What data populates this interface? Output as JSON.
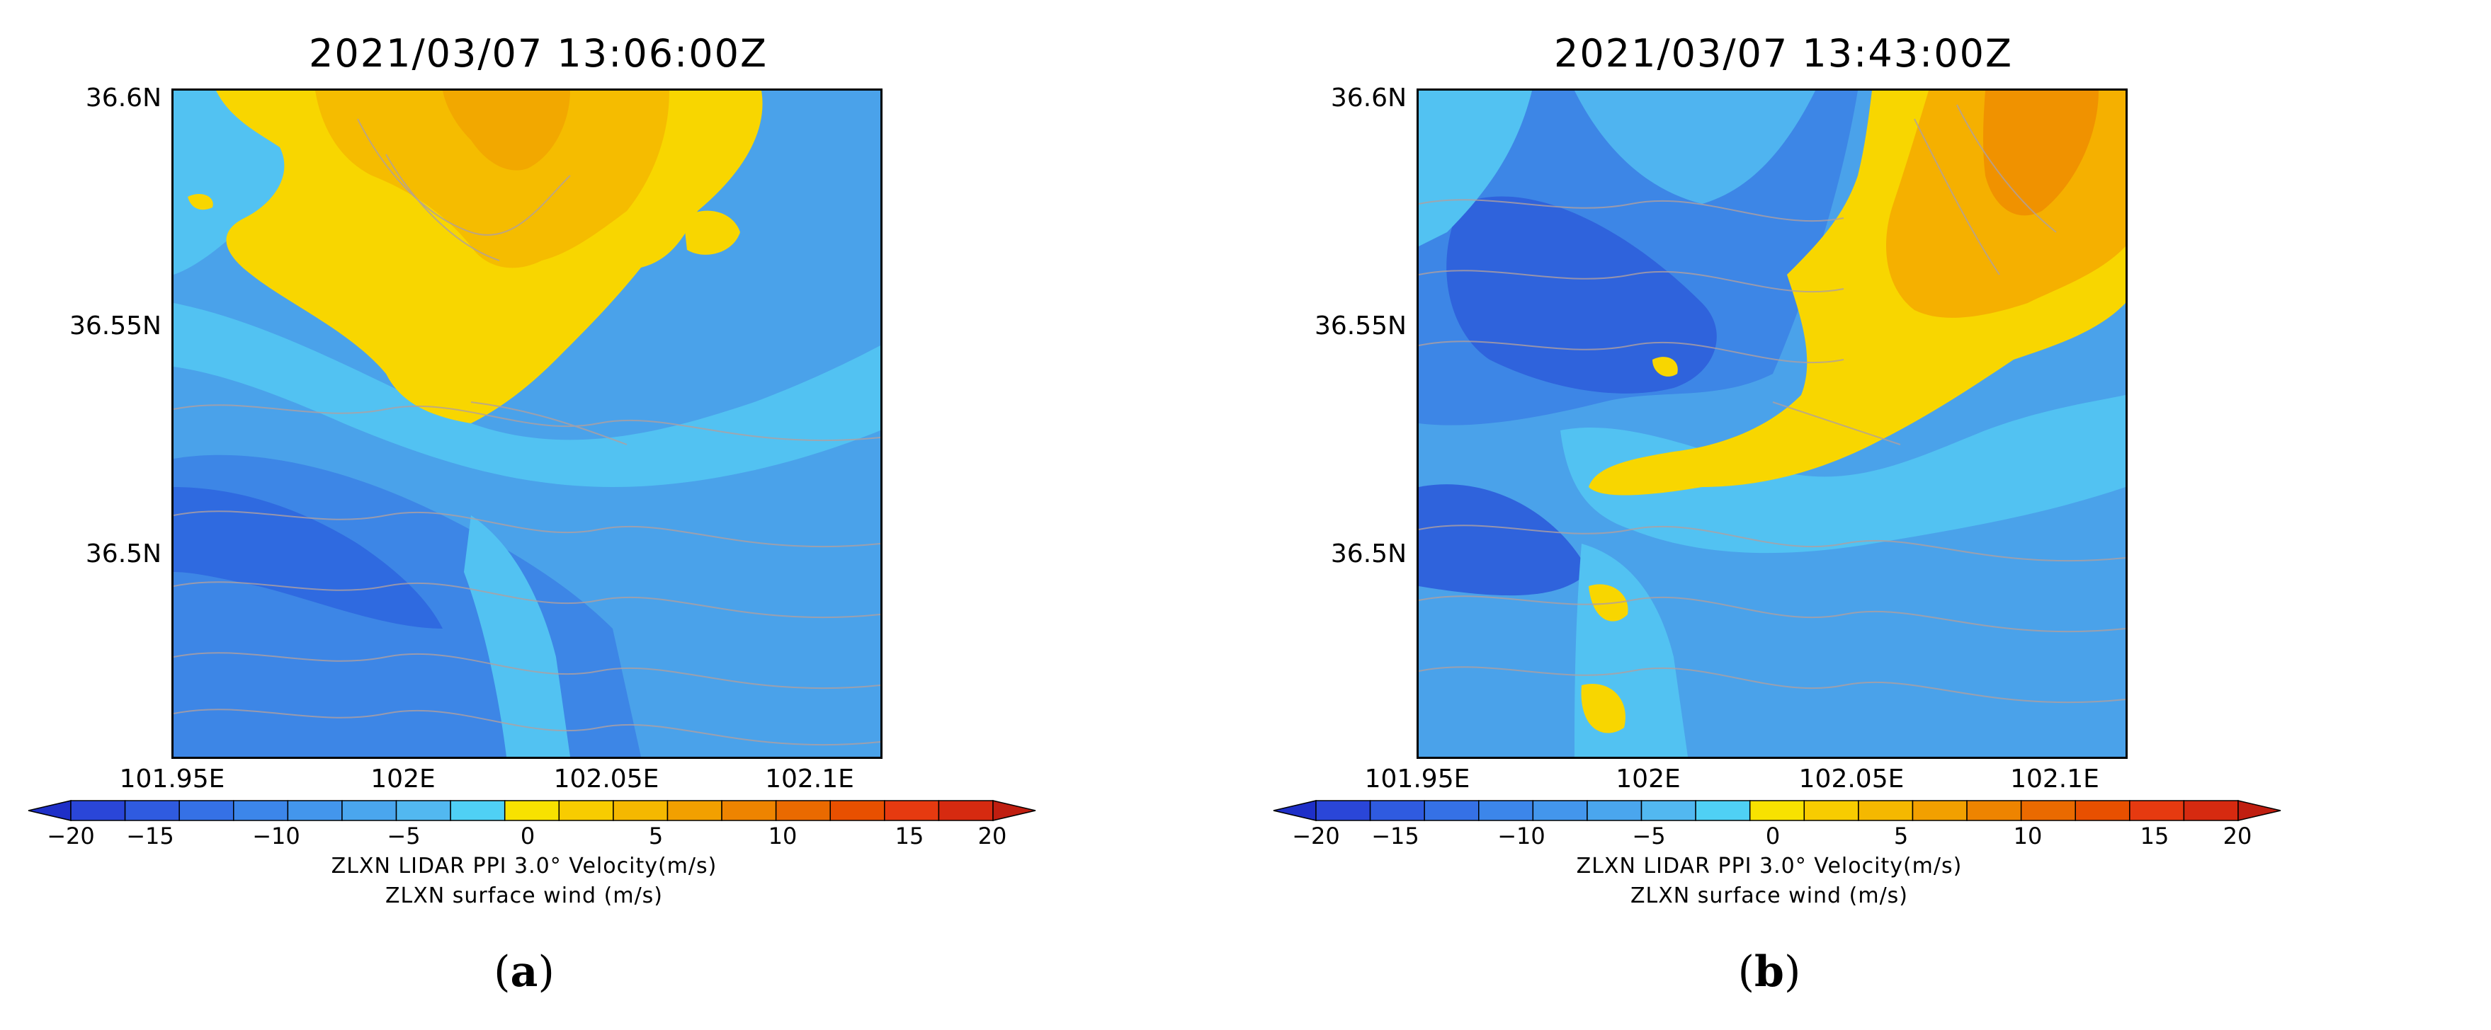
{
  "colorbar": {
    "ticks": [
      "−20",
      "−15",
      "−10",
      "−5",
      "0",
      "5",
      "10",
      "15",
      "20"
    ],
    "tick_values": [
      -20,
      -15,
      -10,
      -5,
      0,
      5,
      10,
      15,
      20
    ],
    "colors": [
      "#1e2fc8",
      "#2a46d8",
      "#2f5be0",
      "#3571e6",
      "#3c86ea",
      "#4396ec",
      "#4aa6ee",
      "#52b8f0",
      "#4fd0f5",
      "#f8e200",
      "#f8cc00",
      "#f5b800",
      "#f2a000",
      "#ee8400",
      "#ea6a00",
      "#e85000",
      "#e63a10",
      "#d62a10",
      "#c01e10"
    ],
    "label_line1": "ZLXN LIDAR PPI 3.0° Velocity(m/s)",
    "label_line2": "ZLXN surface wind (m/s)"
  },
  "map_style": {
    "base_blue": "#4aa2ea",
    "deep_blue": "#2f63dc",
    "cyan": "#4fd0f5",
    "yellow": "#f8d600",
    "orange": "#f5b000",
    "dark_orange": "#f09200",
    "contour": "#b0a0a0"
  },
  "axes": {
    "lat_labels": [
      "36.6N",
      "36.55N",
      "36.5N"
    ],
    "lat_values": [
      36.6,
      36.55,
      36.5
    ],
    "lon_labels": [
      "101.95E",
      "102E",
      "102.05E",
      "102.1E"
    ],
    "lon_values": [
      101.95,
      102.0,
      102.05,
      102.1
    ]
  },
  "panels": [
    {
      "id": "a",
      "title": "2021/03/07  13:06:00Z",
      "letter": "a"
    },
    {
      "id": "b",
      "title": "2021/03/07  13:43:00Z",
      "letter": "b"
    }
  ]
}
